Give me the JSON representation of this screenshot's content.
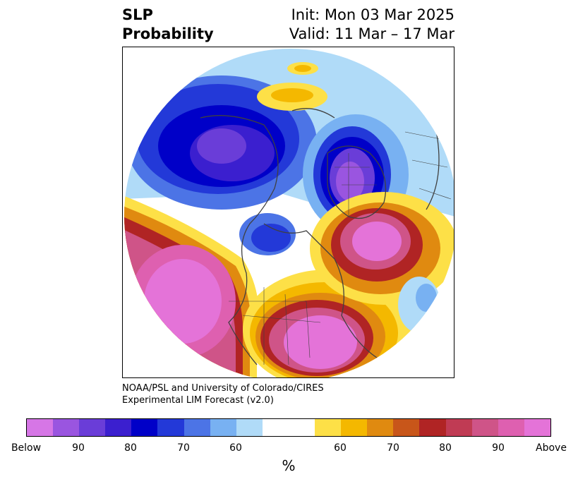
{
  "header": {
    "variable_line1": "SLP",
    "variable_line2": "Probability",
    "init": "Init: Mon 03 Mar 2025",
    "valid": "Valid: 11 Mar – 17 Mar"
  },
  "credit": {
    "line1": "NOAA/PSL and University of Colorado/CIRES",
    "line2": "Experimental LIM Forecast (v2.0)"
  },
  "colorbar": {
    "unit_label": "%",
    "colors": [
      "#d676e6",
      "#9a55e0",
      "#6a3dd8",
      "#3b1fcf",
      "#0000c8",
      "#2339d8",
      "#4c74e6",
      "#78b1f2",
      "#b0dbf8",
      "#ffffff",
      "#fde047",
      "#f4b800",
      "#e08a10",
      "#c8561a",
      "#b02424",
      "#c03b54",
      "#cf5488",
      "#de60b0",
      "#e473d8"
    ],
    "ticks": [
      "Below",
      "90",
      "80",
      "70",
      "60",
      "60",
      "70",
      "80",
      "90",
      "Above"
    ]
  },
  "map": {
    "projection": "north-polar-stereographic",
    "field": "sea-level-pressure-probability",
    "features": [
      "coastlines",
      "country-borders",
      "state-borders"
    ]
  }
}
